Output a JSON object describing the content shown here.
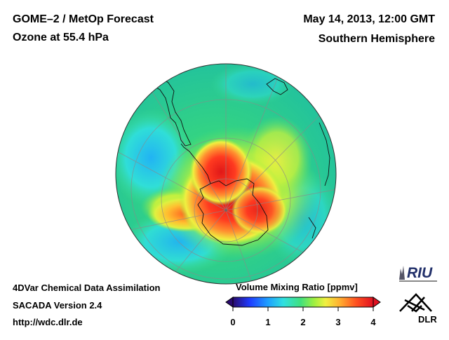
{
  "header": {
    "title_line1": "GOME–2 / MetOp Forecast",
    "title_line2": "Ozone at 55.4 hPa",
    "date": "May 14, 2013, 12:00 GMT",
    "region": "Southern Hemisphere"
  },
  "footer": {
    "line1": "4DVar Chemical Data Assimilation",
    "line2": "SACADA Version 2.4",
    "line3": "http://wdc.dlr.de"
  },
  "colorbar": {
    "title": "Volume Mixing Ratio [ppmv]",
    "ticks": [
      "0",
      "1",
      "2",
      "3",
      "4"
    ],
    "range": [
      0,
      4
    ],
    "colors": [
      "#2a0a6e",
      "#1e3cff",
      "#1ea0ff",
      "#30e0e0",
      "#40e080",
      "#a0f040",
      "#f0f040",
      "#ffb030",
      "#ff5020",
      "#e01020"
    ]
  },
  "logos": {
    "riu": "RIU",
    "dlr": "DLR"
  },
  "map": {
    "projection": "orthographic-south-pole",
    "colors": {
      "background_field": "#30d080",
      "high": "#ff3020",
      "mid": "#ffe040",
      "low": "#30c0ff",
      "coast": "#111111",
      "grid": "#8a8a8a"
    }
  }
}
